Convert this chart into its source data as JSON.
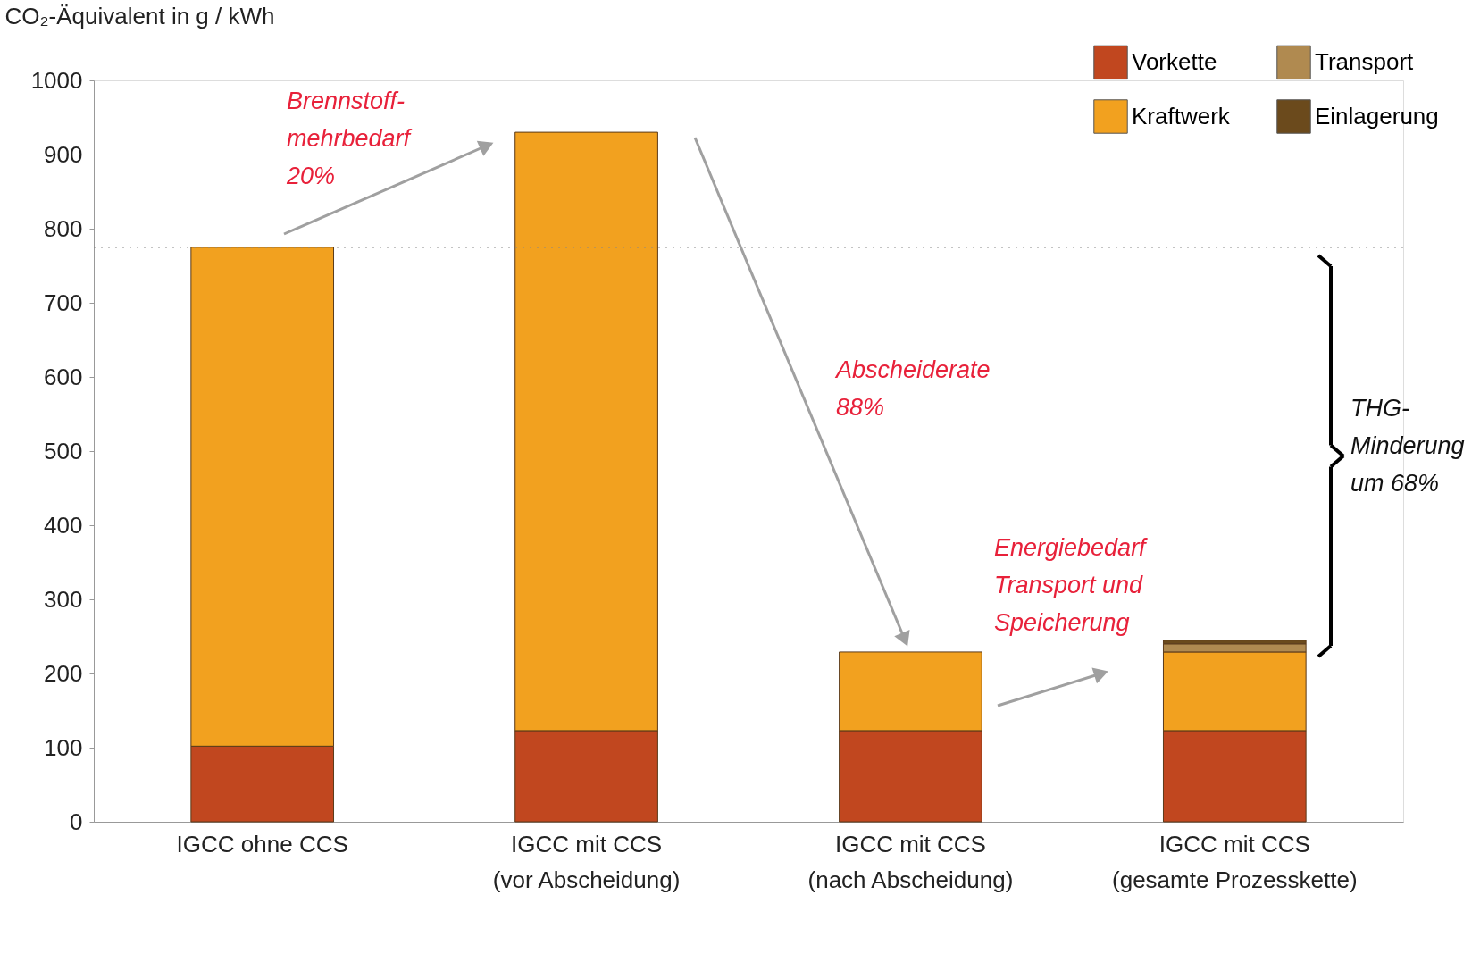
{
  "chart_data": {
    "type": "bar",
    "stacked": true,
    "ylabel": "CO₂-Äquivalent in g / kWh",
    "categories": [
      "IGCC ohne CCS",
      "IGCC mit CCS\n(vor Abscheidung)",
      "IGCC mit CCS\n(nach Abscheidung)",
      "IGCC mit CCS\n(gesamte Prozesskette)"
    ],
    "series": [
      {
        "name": "Vorkette",
        "color": "#c1471f",
        "values": [
          102,
          123,
          123,
          123
        ]
      },
      {
        "name": "Kraftwerk",
        "color": "#f2a11f",
        "values": [
          673,
          807,
          106,
          106
        ]
      },
      {
        "name": "Transport",
        "color": "#b08a50",
        "values": [
          null,
          null,
          null,
          11
        ]
      },
      {
        "name": "Einlagerung",
        "color": "#6b4a1c",
        "values": [
          null,
          null,
          null,
          5
        ]
      }
    ],
    "ylim": [
      0,
      1000
    ],
    "yticks": [
      0,
      100,
      200,
      300,
      400,
      500,
      600,
      700,
      800,
      900,
      1000
    ],
    "grid": false,
    "legend": "top right",
    "ref_lines": [
      {
        "axis": "y",
        "value": 775,
        "label": null,
        "color": "#888888",
        "line_style": "dotted"
      }
    ],
    "annotations": [
      "Brennstoff-\nmehrbedarf\n20%",
      "Abscheiderate\n   88%",
      "Energiebedarf\nTransport und\nSpeicherung",
      "THG-\nMinderung\num 68%"
    ]
  }
}
